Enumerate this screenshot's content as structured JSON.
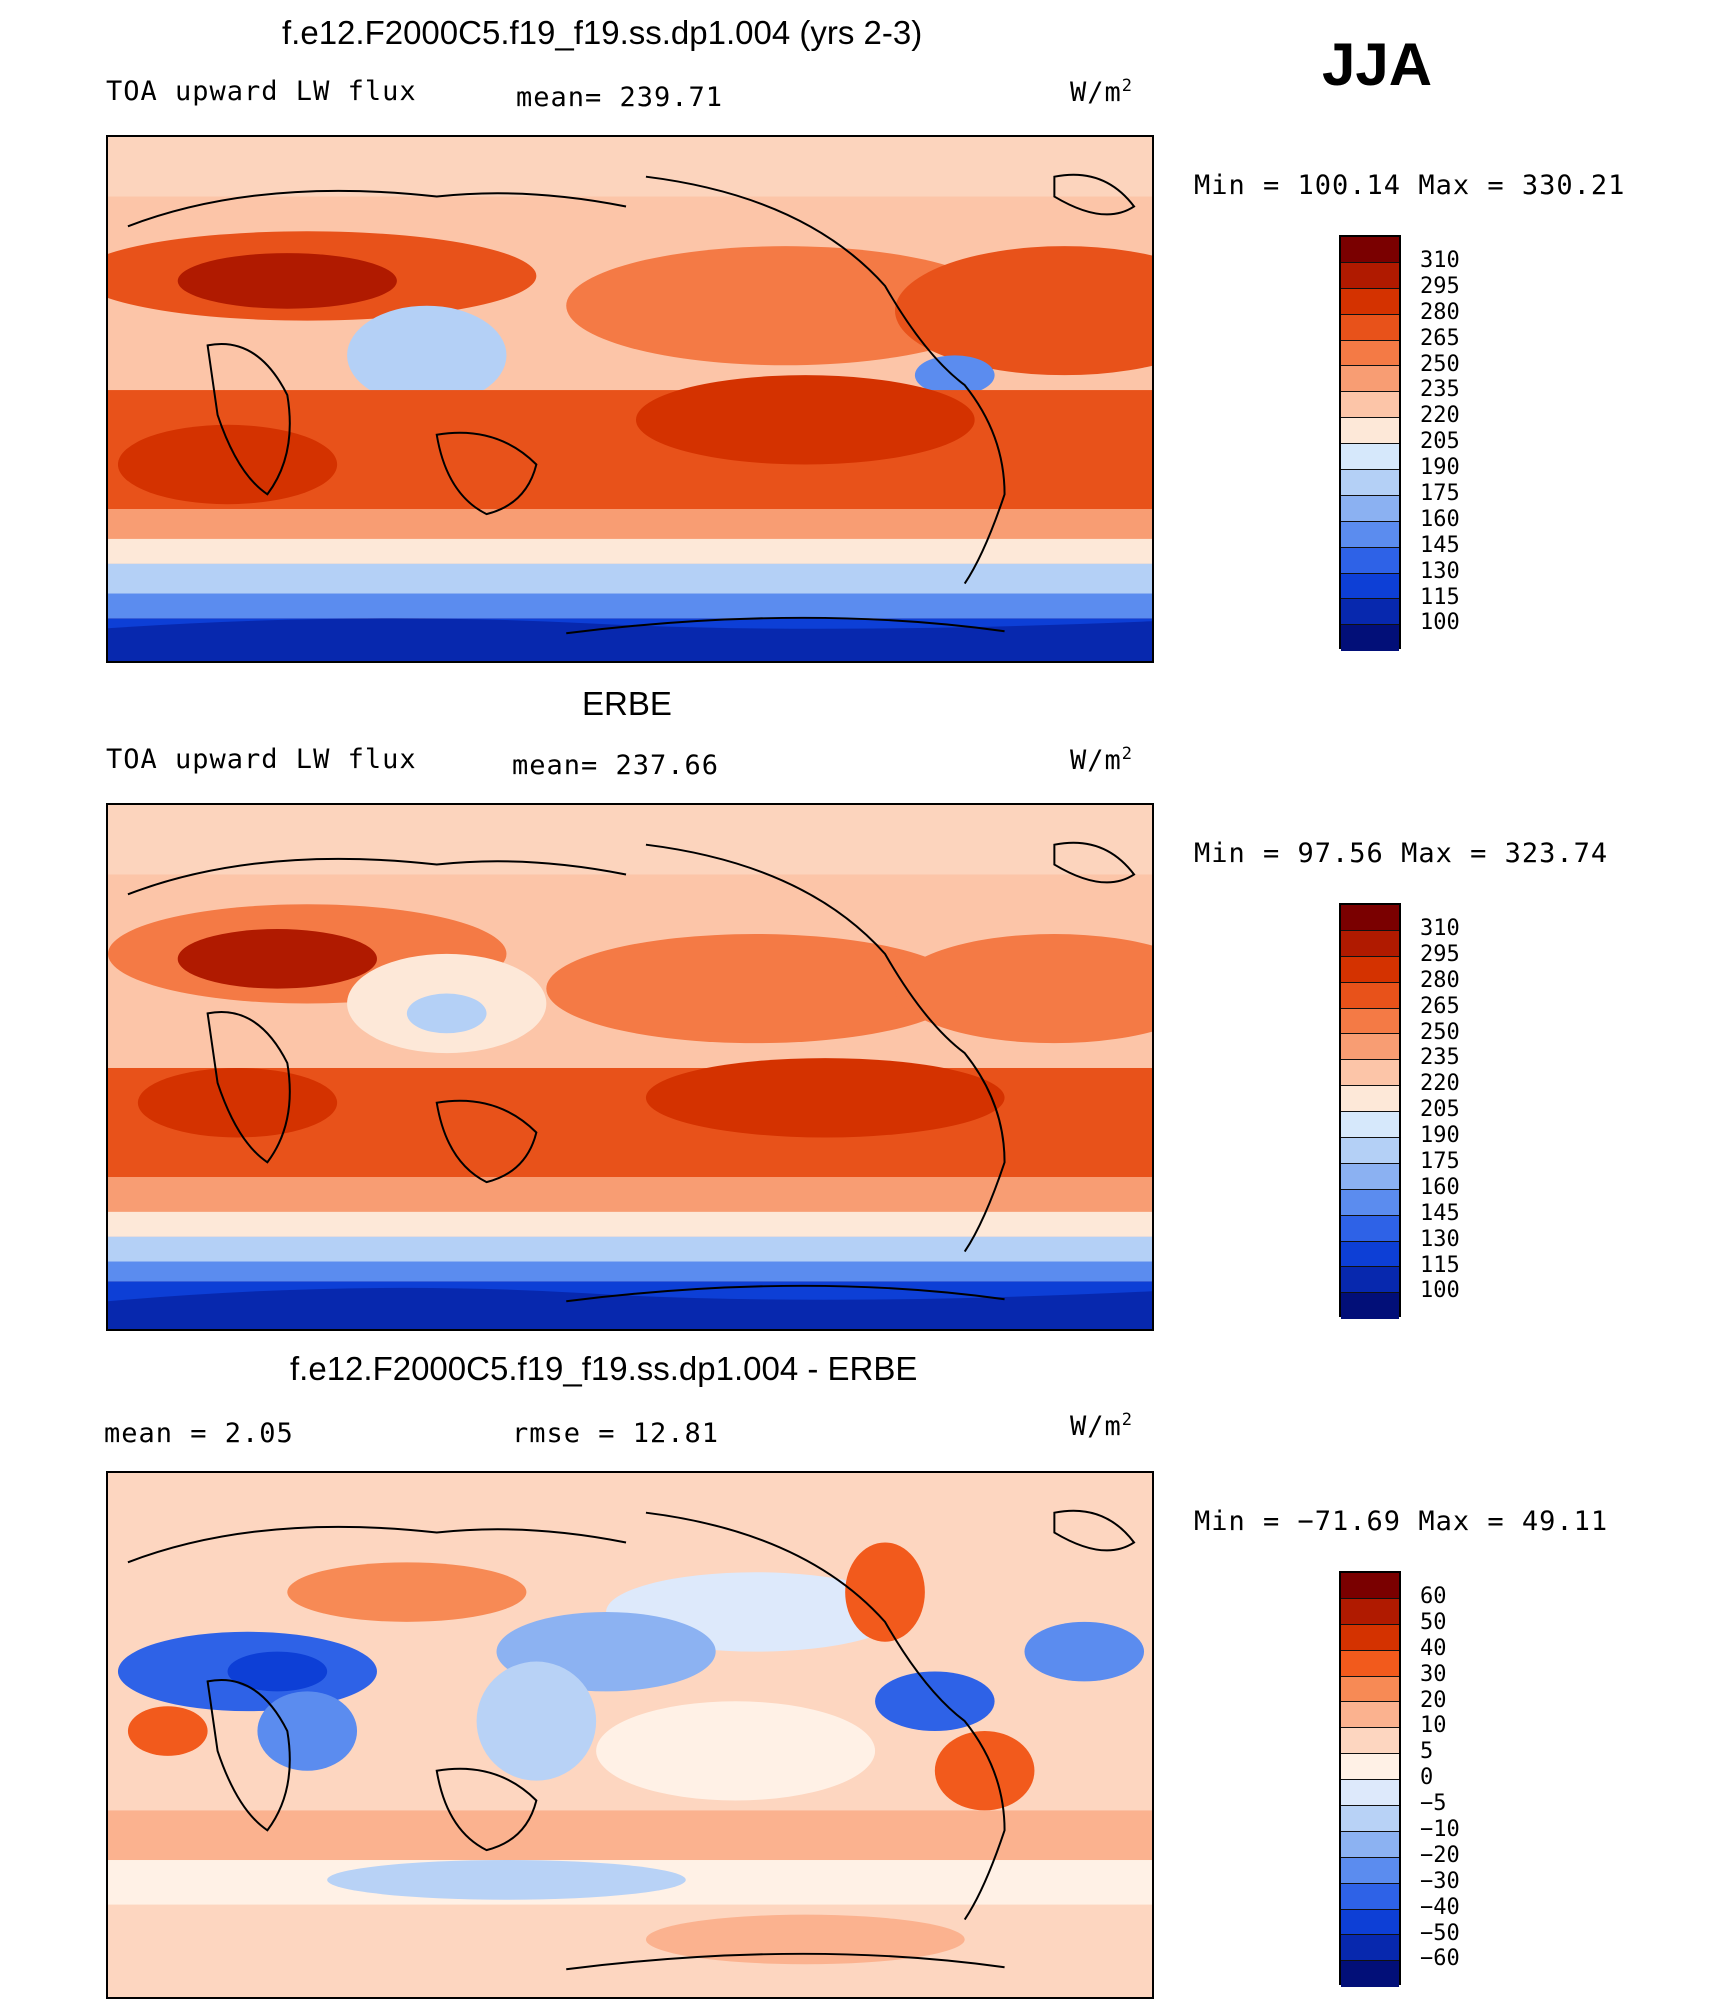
{
  "season": "JJA",
  "palettes": {
    "abs": [
      "#7a0000",
      "#b01a00",
      "#d43200",
      "#e8521a",
      "#f47a45",
      "#f89d73",
      "#fcc5a8",
      "#fde8d8",
      "#d6e8fb",
      "#b4d0f6",
      "#8bb1f2",
      "#5b8cef",
      "#2e62e7",
      "#0d3fd6",
      "#0728ae",
      "#020f78"
    ],
    "diff": [
      "#7a0000",
      "#b01a00",
      "#d43200",
      "#f25a1c",
      "#f78a55",
      "#fbb28f",
      "#fdd6c0",
      "#fff1e6",
      "#dde9fb",
      "#b8d2f6",
      "#8cb2f2",
      "#5b8cef",
      "#2e62e7",
      "#0d3fd6",
      "#0728ae",
      "#020f78"
    ]
  },
  "panels": [
    {
      "title": "f.e12.F2000C5.f19_f19.ss.dp1.004 (yrs 2-3)",
      "left_label": "TOA upward LW flux",
      "center_label": "mean=  239.71",
      "units": "W/m",
      "units_sup": "2",
      "minmax": "Min  =  100.14  Max  =  330.21",
      "colorbar_labels": [
        "310",
        "295",
        "280",
        "265",
        "250",
        "235",
        "220",
        "205",
        "190",
        "175",
        "160",
        "145",
        "130",
        "115",
        "100"
      ],
      "palette": "abs"
    },
    {
      "title": "ERBE",
      "left_label": "TOA upward LW flux",
      "center_label": "mean=  237.66",
      "units": "W/m",
      "units_sup": "2",
      "minmax": "Min  =   97.56  Max  =  323.74",
      "colorbar_labels": [
        "310",
        "295",
        "280",
        "265",
        "250",
        "235",
        "220",
        "205",
        "190",
        "175",
        "160",
        "145",
        "130",
        "115",
        "100"
      ],
      "palette": "abs"
    },
    {
      "title": "f.e12.F2000C5.f19_f19.ss.dp1.004 - ERBE",
      "left_label": "mean =     2.05",
      "center_label": "rmse  =    12.81",
      "units": "W/m",
      "units_sup": "2",
      "minmax": "Min  =  −71.69  Max  =    49.11",
      "colorbar_labels": [
        "60",
        "50",
        "40",
        "30",
        "20",
        "10",
        "5",
        "0",
        "−5",
        "−10",
        "−20",
        "−30",
        "−40",
        "−50",
        "−60"
      ],
      "palette": "diff"
    }
  ]
}
